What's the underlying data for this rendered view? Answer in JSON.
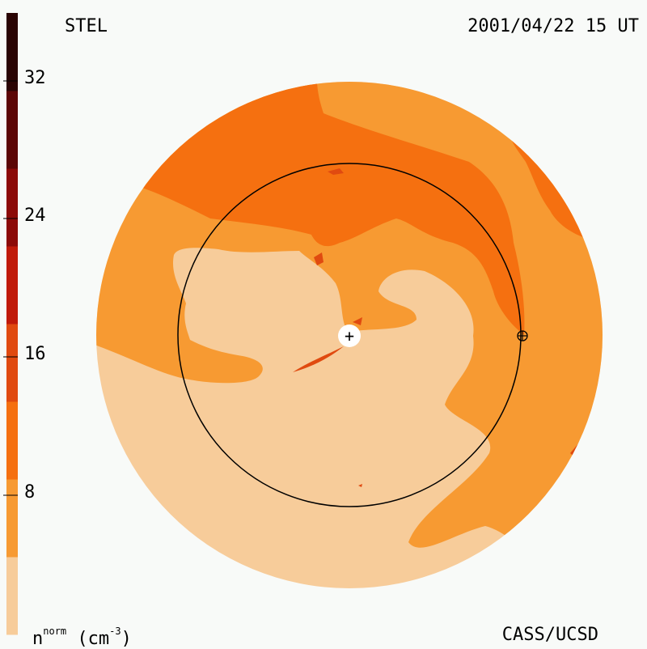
{
  "header": {
    "observatory": "STEL",
    "datetime": "2001/04/22 15 UT"
  },
  "footer": {
    "credit": "CASS/UCSD",
    "unit_symbol": "n",
    "unit_superscript": "norm",
    "unit_paren_open": "(cm",
    "unit_exponent": "-3",
    "unit_paren_close": ")"
  },
  "colorbar": {
    "ticks": [
      "32",
      "24",
      "16",
      "8"
    ],
    "tick_values": [
      32,
      24,
      16,
      8
    ],
    "range": [
      0,
      36
    ],
    "band_colors": [
      "#f7cc9a",
      "#f79a32",
      "#f57010",
      "#e04a10",
      "#c01a0a",
      "#8c0a08",
      "#5c0606",
      "#2a0404"
    ]
  },
  "map": {
    "colors": {
      "lowest": "#f7cc9a",
      "low": "#f79a32",
      "medium": "#f57010",
      "high": "#e04a10"
    },
    "sun_symbol": "+",
    "earth_symbol": "⊕"
  }
}
